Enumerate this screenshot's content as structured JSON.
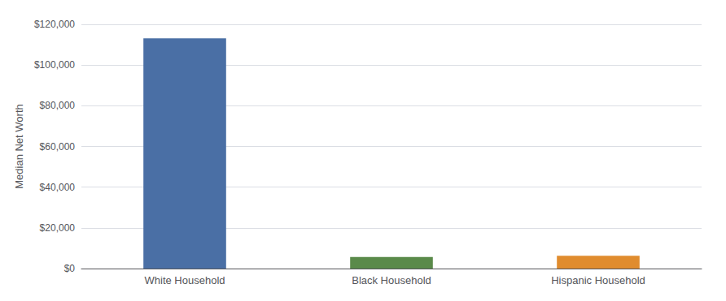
{
  "chart_data": {
    "type": "bar",
    "categories": [
      "White Household",
      "Black Household",
      "Hispanic Household"
    ],
    "values": [
      113149,
      5677,
      6325
    ],
    "colors": [
      "#4a6fa5",
      "#5a8a4a",
      "#e08c2e"
    ],
    "ylabel": "Median Net Worth",
    "ylim": [
      0,
      120000
    ],
    "yticks": [
      {
        "value": 0,
        "label": "$0"
      },
      {
        "value": 20000,
        "label": "$20,000"
      },
      {
        "value": 40000,
        "label": "$40,000"
      },
      {
        "value": 60000,
        "label": "$60,000"
      },
      {
        "value": 80000,
        "label": "$80,000"
      },
      {
        "value": 100000,
        "label": "$100,000"
      },
      {
        "value": 120000,
        "label": "$120,000"
      }
    ],
    "grid": true
  }
}
